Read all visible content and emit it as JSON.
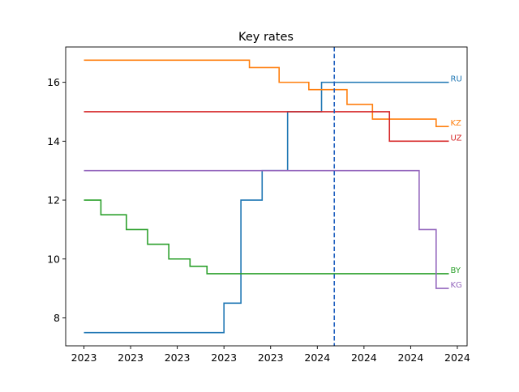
{
  "chart_data": {
    "type": "line",
    "title": "Key rates",
    "xlabel": "",
    "ylabel": "",
    "x_tick_labels": [
      "2023",
      "2023",
      "2023",
      "2023",
      "2023",
      "2024",
      "2024",
      "2024",
      "2024"
    ],
    "y_ticks": [
      8,
      10,
      12,
      14,
      16
    ],
    "ylim": [
      7.05,
      17.2
    ],
    "grid": false,
    "series": [
      {
        "name": "RU",
        "color": "#1f77b4",
        "points": [
          [
            0,
            7.5
          ],
          [
            33,
            7.5
          ],
          [
            33,
            8.5
          ],
          [
            37,
            8.5
          ],
          [
            37,
            12
          ],
          [
            42,
            12
          ],
          [
            42,
            13
          ],
          [
            48,
            13
          ],
          [
            48,
            15
          ],
          [
            56,
            15
          ],
          [
            56,
            16
          ],
          [
            86,
            16
          ]
        ]
      },
      {
        "name": "KZ",
        "color": "#ff7f0e",
        "points": [
          [
            0,
            16.75
          ],
          [
            39,
            16.75
          ],
          [
            39,
            16.5
          ],
          [
            46,
            16.5
          ],
          [
            46,
            16
          ],
          [
            53,
            16
          ],
          [
            53,
            15.75
          ],
          [
            62,
            15.75
          ],
          [
            62,
            15.25
          ],
          [
            68,
            15.25
          ],
          [
            68,
            14.75
          ],
          [
            83,
            14.75
          ],
          [
            83,
            14.5
          ],
          [
            86,
            14.5
          ]
        ]
      },
      {
        "name": "UZ",
        "color": "#d62728",
        "points": [
          [
            0,
            15
          ],
          [
            72,
            15
          ],
          [
            72,
            14
          ],
          [
            86,
            14
          ]
        ]
      },
      {
        "name": "BY",
        "color": "#2ca02c",
        "points": [
          [
            0,
            12
          ],
          [
            4,
            12
          ],
          [
            4,
            11.5
          ],
          [
            10,
            11.5
          ],
          [
            10,
            11
          ],
          [
            15,
            11
          ],
          [
            15,
            10.5
          ],
          [
            20,
            10.5
          ],
          [
            20,
            10
          ],
          [
            25,
            10
          ],
          [
            25,
            9.75
          ],
          [
            29,
            9.75
          ],
          [
            29,
            9.5
          ],
          [
            86,
            9.5
          ]
        ]
      },
      {
        "name": "KG",
        "color": "#9467bd",
        "points": [
          [
            0,
            13
          ],
          [
            79,
            13
          ],
          [
            79,
            11
          ],
          [
            83,
            11
          ],
          [
            83,
            9
          ],
          [
            86,
            9
          ]
        ]
      }
    ],
    "vertical_line": {
      "x": 59,
      "color": "#1f5fbf",
      "style": "dashed"
    }
  }
}
